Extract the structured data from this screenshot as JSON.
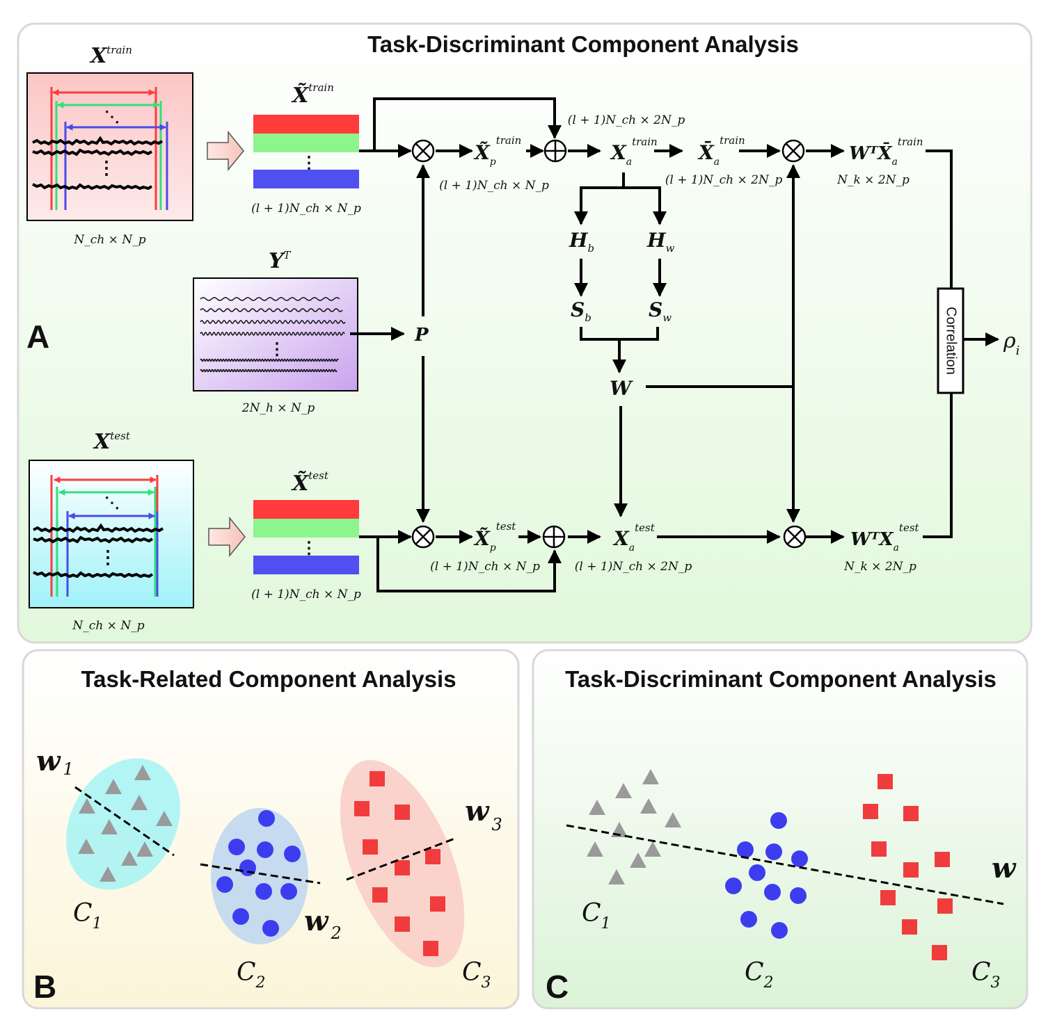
{
  "panel_a": {
    "title": "Task-Discriminant Component Analysis",
    "letter": "A",
    "x_train_label": "X",
    "x_train_sup": "train",
    "x_train_dim": "N_ch × N_p",
    "x_test_label": "X",
    "x_test_sup": "test",
    "x_test_dim": "N_ch × N_p",
    "xt_train_label": "X̃",
    "xt_train_sup": "train",
    "xt_train_dim": "(l + 1)N_ch × N_p",
    "xt_test_label": "X̃",
    "xt_test_sup": "test",
    "xt_test_dim": "(l + 1)N_ch × N_p",
    "y_label": "Y",
    "y_sup": "T",
    "y_dim": "2N_h × N_p",
    "p_label": "P",
    "xp_train_label": "X̃",
    "xp_train_sub": "p",
    "xp_train_sup": "train",
    "xp_train_dim": "(l + 1)N_ch × N_p",
    "xp_test_label": "X̃",
    "xp_test_sub": "p",
    "xp_test_sup": "test",
    "xp_test_dim": "(l + 1)N_ch × N_p",
    "xa_train_label": "X",
    "xa_train_sub": "a",
    "xa_train_sup": "train",
    "xa_train_dim": "(l + 1)N_ch × 2N_p",
    "xabar_train_label": "X̄",
    "xabar_train_sub": "a",
    "xabar_train_sup": "train",
    "xabar_train_dim": "(l + 1)N_ch × 2N_p",
    "xa_test_label": "X",
    "xa_test_sub": "a",
    "xa_test_sup": "test",
    "xa_test_dim": "(l + 1)N_ch × 2N_p",
    "wtx_train_label": "WᵀX̄",
    "wtx_train_sub": "a",
    "wtx_train_sup": "train",
    "wtx_train_dim": "N_k × 2N_p",
    "wtx_test_label": "WᵀX",
    "wtx_test_sub": "a",
    "wtx_test_sup": "test",
    "wtx_test_dim": "N_k × 2N_p",
    "hb_label": "H",
    "hb_sub": "b",
    "hw_label": "H",
    "hw_sub": "w",
    "sb_label": "S",
    "sb_sub": "b",
    "sw_label": "S",
    "sw_sub": "w",
    "w_label": "W",
    "correlation_label": "Correlation",
    "rho_label": "ρ",
    "rho_sub": "i",
    "vdots": "⋮"
  },
  "panel_b": {
    "title": "Task-Related Component Analysis",
    "letter": "B",
    "w1_label": "w",
    "w1_sub": "1",
    "w2_label": "w",
    "w2_sub": "2",
    "w3_label": "w",
    "w3_sub": "3",
    "c1_label": "C",
    "c1_sub": "1",
    "c2_label": "C",
    "c2_sub": "2",
    "c3_label": "C",
    "c3_sub": "3"
  },
  "panel_c": {
    "title": "Task-Discriminant Component Analysis",
    "letter": "C",
    "w_label": "w",
    "c1_label": "C",
    "c1_sub": "1",
    "c2_label": "C",
    "c2_sub": "2",
    "c3_label": "C",
    "c3_sub": "3"
  },
  "colors": {
    "red": "#ff3b3b",
    "green": "#8cf58c",
    "blue": "#5050f0",
    "triangle": "#9a9a9a",
    "circle": "#3d3df0",
    "square": "#f03c3c"
  }
}
